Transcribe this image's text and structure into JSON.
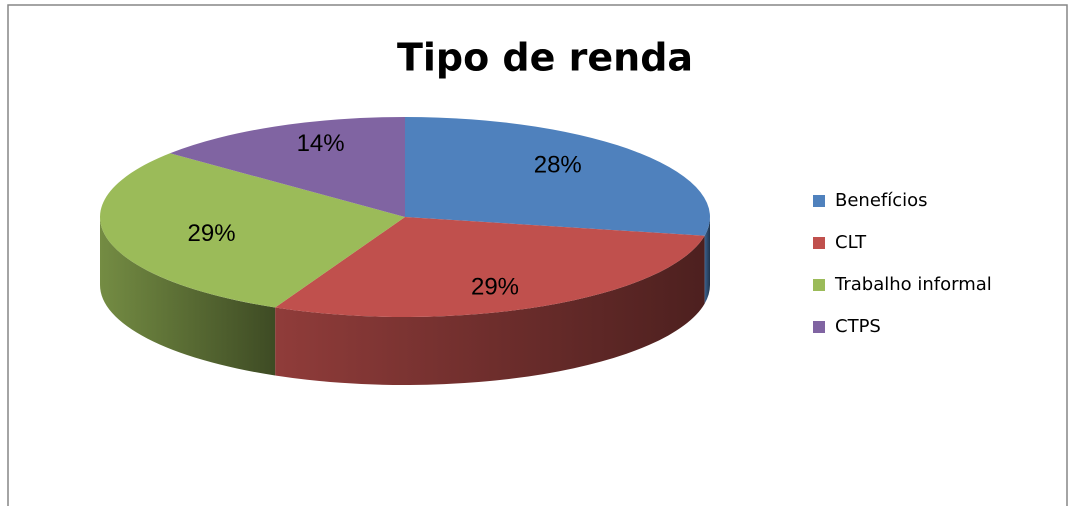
{
  "chart_data": {
    "type": "pie",
    "title": "Tipo de renda",
    "categories": [
      "Benefícios",
      "CLT",
      "Trabalho informal",
      "CTPS"
    ],
    "values": [
      28,
      29,
      29,
      14
    ],
    "value_labels": [
      "28%",
      "29%",
      "29%",
      "14%"
    ],
    "colors": [
      "#4f81bd",
      "#c0504d",
      "#9bbb59",
      "#8064a2"
    ],
    "legend": "right"
  }
}
